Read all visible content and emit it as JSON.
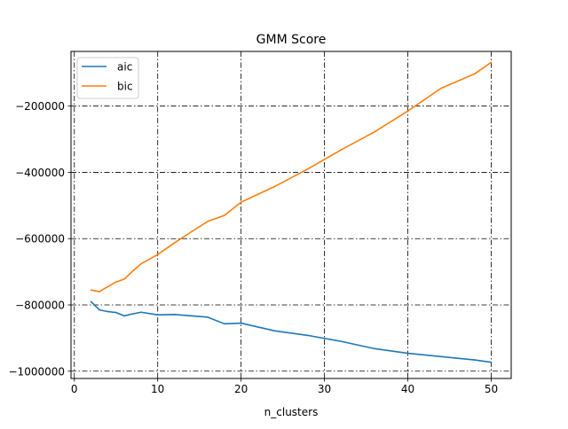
{
  "chart_data": {
    "type": "line",
    "title": "GMM Score",
    "xlabel": "n_clusters",
    "ylabel": "",
    "xlim": [
      -0.4,
      52.4
    ],
    "ylim": [
      -1022000,
      -35000
    ],
    "x_ticks": [
      0,
      10,
      20,
      30,
      40,
      50
    ],
    "x_tick_labels": [
      "0",
      "10",
      "20",
      "30",
      "40",
      "50"
    ],
    "y_ticks": [
      -1000000,
      -800000,
      -600000,
      -400000,
      -200000
    ],
    "y_tick_labels": [
      "−1000000",
      "−800000",
      "−600000",
      "−400000",
      "−200000"
    ],
    "grid": true,
    "grid_style": "dashdot",
    "legend_position": "upper left",
    "series": [
      {
        "name": "aic",
        "color": "#1f77b4",
        "x": [
          2,
          3,
          4,
          5,
          6,
          7,
          8,
          10,
          12,
          14,
          16,
          18,
          20,
          24,
          28,
          32,
          36,
          40,
          44,
          48,
          50
        ],
        "y": [
          -790000,
          -815000,
          -820000,
          -823000,
          -833000,
          -827000,
          -822000,
          -830000,
          -829000,
          -833000,
          -837000,
          -857000,
          -855000,
          -878000,
          -892000,
          -910000,
          -932000,
          -946000,
          -956000,
          -966000,
          -973000
        ]
      },
      {
        "name": "bic",
        "color": "#ff7f0e",
        "x": [
          2,
          3,
          4,
          5,
          6,
          7,
          8,
          10,
          12,
          14,
          16,
          18,
          20,
          24,
          28,
          32,
          36,
          40,
          44,
          48,
          50
        ],
        "y": [
          -755000,
          -760000,
          -745000,
          -731000,
          -722000,
          -698000,
          -676000,
          -648000,
          -613000,
          -580000,
          -548000,
          -530000,
          -490000,
          -443000,
          -390000,
          -332000,
          -278000,
          -215000,
          -146000,
          -103000,
          -68000
        ]
      }
    ]
  }
}
